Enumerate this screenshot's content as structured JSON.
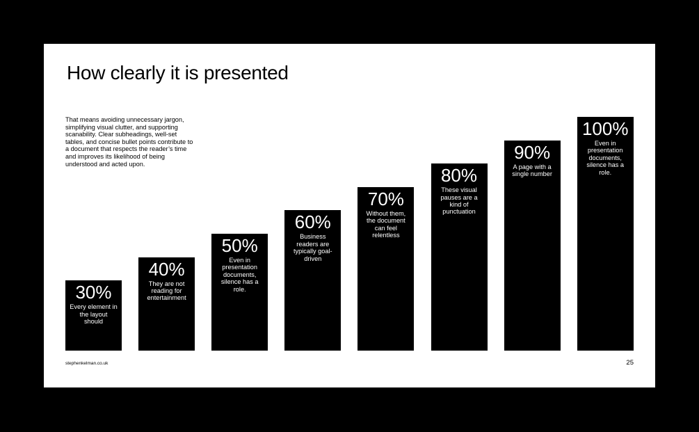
{
  "slide": {
    "title": "How clearly it is presented",
    "body": "That means avoiding unnecessary jargon, simplifying visual clutter, and supporting scanability. Clear subheadings, well-set tables, and concise bullet points contribute to a document that respects the reader’s time and improves its likelihood of being understood and acted upon.",
    "footer_source": "stephenkelman.co.uk",
    "page_number": "25"
  },
  "colors": {
    "background": "#000000",
    "slide": "#ffffff",
    "bar": "#000000",
    "bar_text": "#ffffff"
  },
  "chart_data": {
    "type": "bar",
    "title": "",
    "xlabel": "",
    "ylabel": "",
    "ylim": [
      0,
      100
    ],
    "grid": false,
    "categories": [
      "Every element in the layout should",
      "They are not reading for entertainment",
      "Even in presentation documents, silence has a role.",
      "Business readers are typically goal-driven",
      "Without them, the document can feel relentless",
      "These visual pauses are a kind of punctuation",
      "A page with a single number",
      "Even in presentation documents, silence has a role."
    ],
    "values": [
      30,
      40,
      50,
      60,
      70,
      80,
      90,
      100
    ],
    "labels": [
      "30%",
      "40%",
      "50%",
      "60%",
      "70%",
      "80%",
      "90%",
      "100%"
    ]
  }
}
